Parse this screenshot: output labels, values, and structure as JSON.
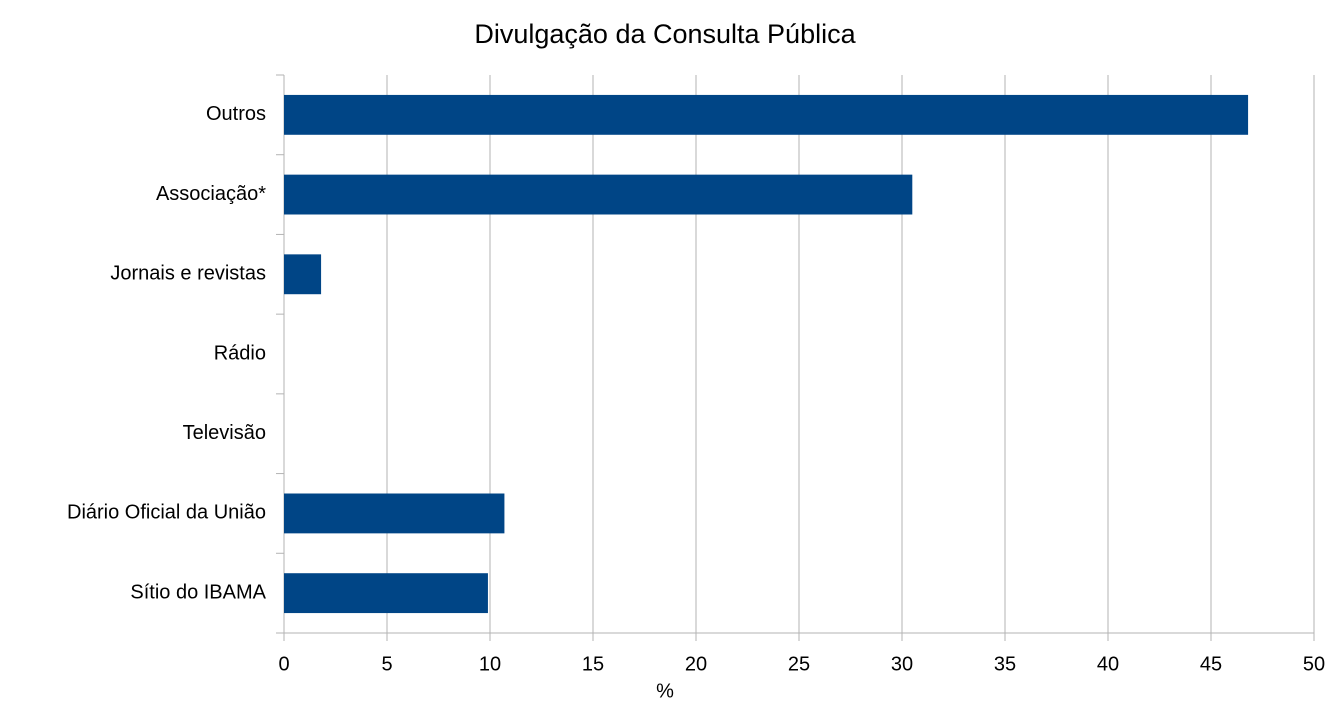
{
  "chart_data": {
    "type": "bar",
    "orientation": "horizontal",
    "title": "Divulgação da Consulta Pública",
    "x_label": "%",
    "categories": [
      "Outros",
      "Associação*",
      "Jornais e revistas",
      "Rádio",
      "Televisão",
      "Diário Oficial da União",
      "Sítio do IBAMA"
    ],
    "values": [
      46.8,
      30.5,
      1.8,
      0,
      0,
      10.7,
      9.9
    ],
    "color": "#004586",
    "xlim": [
      0,
      50
    ],
    "xticks": [
      0,
      5,
      10,
      15,
      20,
      25,
      30,
      35,
      40,
      45,
      50
    ],
    "grid": true
  }
}
